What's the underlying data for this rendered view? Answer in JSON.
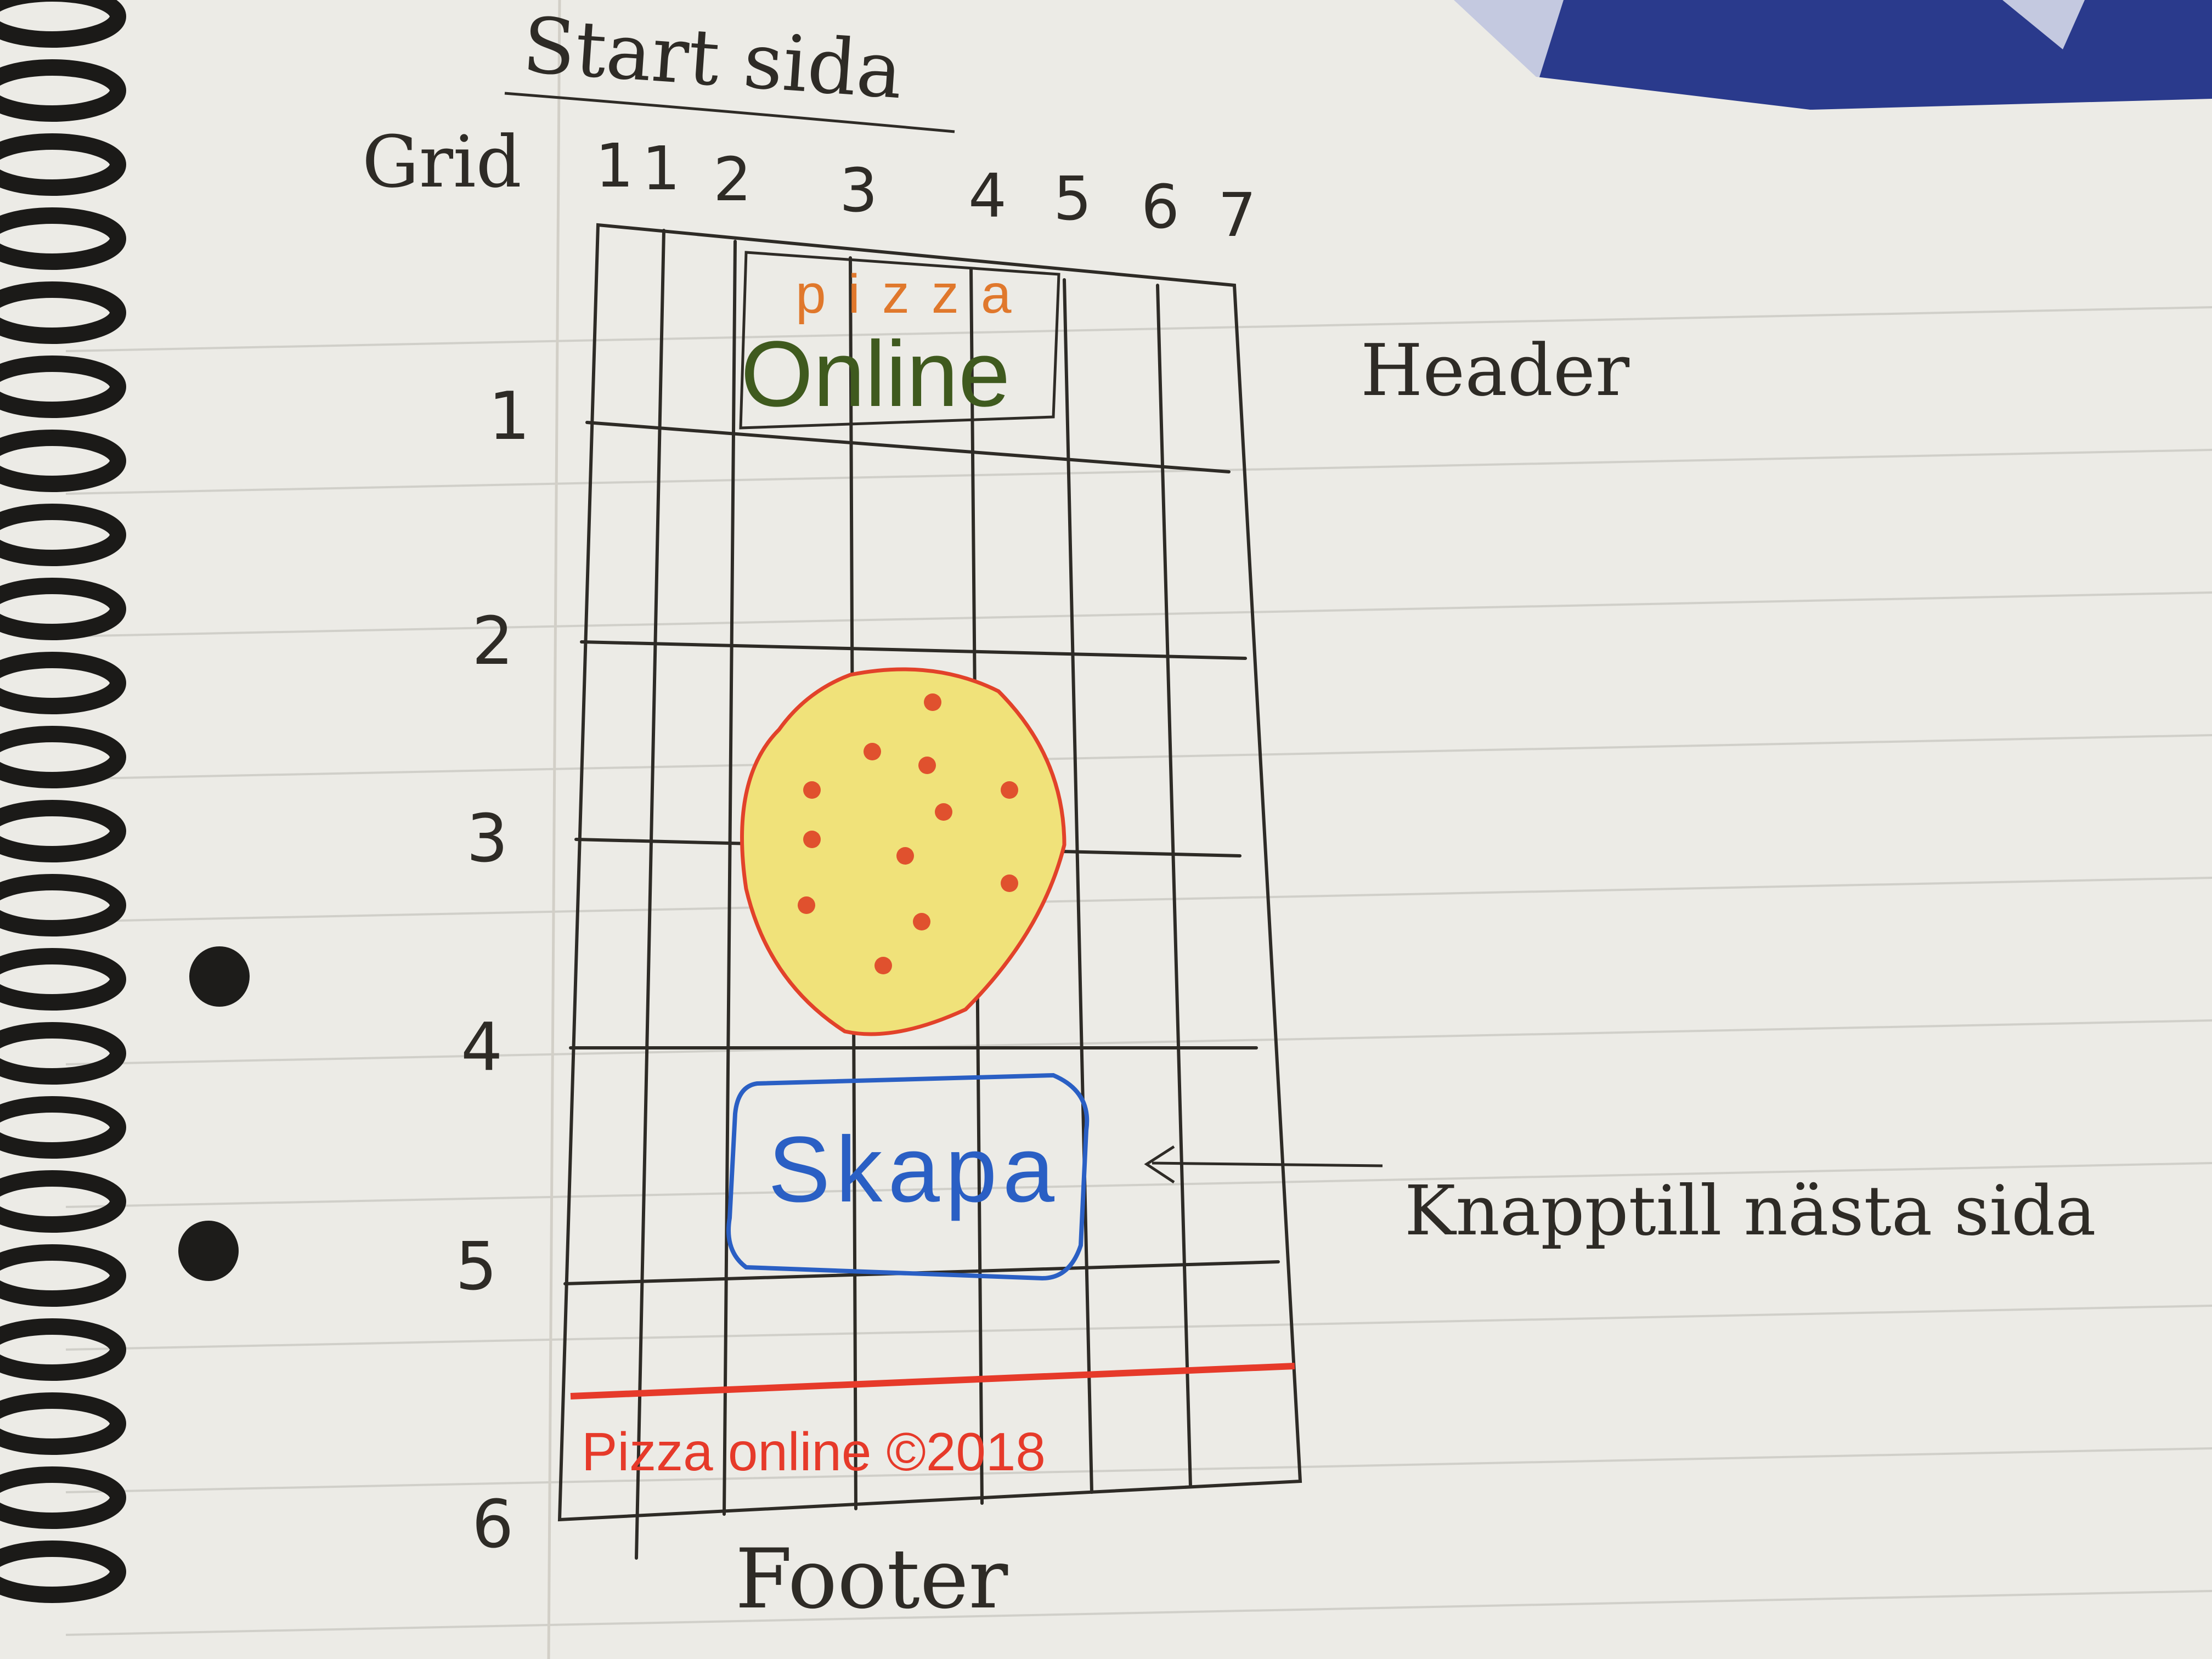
{
  "sketch": {
    "page_title": "Start sida",
    "grid_label": "Grid",
    "column_numbers": [
      "1",
      "1",
      "2",
      "3",
      "4",
      "5",
      "6",
      "7"
    ],
    "row_numbers": [
      "1",
      "2",
      "3",
      "4",
      "5",
      "6"
    ],
    "logo_top": "pizza",
    "logo_bottom": "Online",
    "header_note": "Header",
    "button_label": "Skapa",
    "button_note": "Knapptill nästa sida",
    "footer_text": "Pizza online ©2018",
    "footer_note": "Footer"
  },
  "colors": {
    "paper": "#ecebe6",
    "pencil": "#2e2b26",
    "logo_orange": "#e0782c",
    "logo_green": "#3f5a1e",
    "pizza_outline": "#e2422a",
    "pizza_fill": "#f0e27a",
    "pepperoni": "#e0512e",
    "button_blue": "#2a5fc4",
    "footer_red": "#e63a2a",
    "desk_blue": "#2a3a8c"
  }
}
